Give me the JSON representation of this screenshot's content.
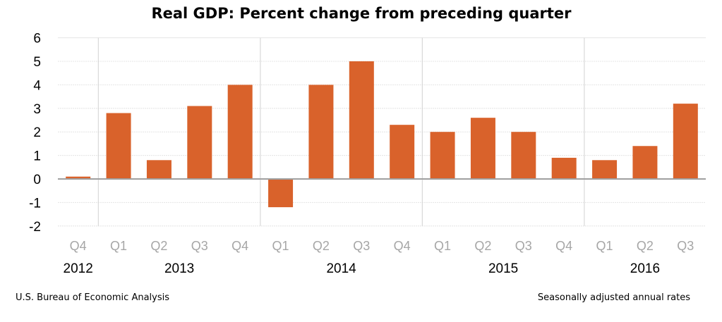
{
  "chart_data": {
    "type": "bar",
    "title": "Real GDP:  Percent change from preceding quarter",
    "categories": [
      "Q4",
      "Q1",
      "Q2",
      "Q3",
      "Q4",
      "Q1",
      "Q2",
      "Q3",
      "Q4",
      "Q1",
      "Q2",
      "Q3",
      "Q4",
      "Q1",
      "Q2",
      "Q3"
    ],
    "years": [
      {
        "label": "2012",
        "count": 1
      },
      {
        "label": "2013",
        "count": 4
      },
      {
        "label": "2014",
        "count": 4
      },
      {
        "label": "2015",
        "count": 4
      },
      {
        "label": "2016",
        "count": 3
      }
    ],
    "values": [
      0.1,
      2.8,
      0.8,
      3.1,
      4.0,
      -1.2,
      4.0,
      5.0,
      2.3,
      2.0,
      2.6,
      2.0,
      0.9,
      0.8,
      1.4,
      3.2
    ],
    "ylim": [
      -2,
      6
    ],
    "yticks": [
      6,
      5,
      4,
      3,
      2,
      1,
      0,
      -1,
      -2
    ],
    "grid": true,
    "bar_color": "#D9622B",
    "xlabel": "",
    "ylabel": ""
  },
  "footer": {
    "source": "U.S. Bureau of Economic Analysis",
    "note": "Seasonally adjusted annual rates"
  }
}
